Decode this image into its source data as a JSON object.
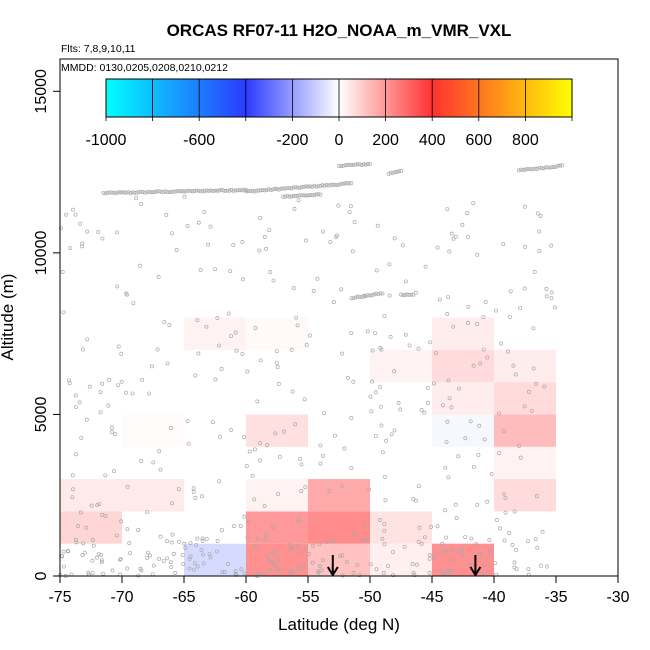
{
  "chart_data": {
    "type": "heatmap",
    "title": "ORCAS RF07-11 H2O_NOAA_m_VMR_VXL",
    "flights_note": "Flts: 7,8,9,10,11",
    "dates_note": "MMDD: 0130,0205,0208,0210,0212",
    "xlabel": "Latitude (deg N)",
    "ylabel": "Altitude (m)",
    "xlim": [
      -75,
      -30
    ],
    "ylim": [
      0,
      16000
    ],
    "x_ticks": [
      -75,
      -70,
      -65,
      -60,
      -55,
      -50,
      -45,
      -40,
      -35,
      -30
    ],
    "x_tick_labels": [
      "-75",
      "-70",
      "-65",
      "-60",
      "-55",
      "-50",
      "-45",
      "-40",
      "-35",
      "-30"
    ],
    "y_ticks": [
      0,
      5000,
      10000,
      15000
    ],
    "y_tick_labels": [
      "0",
      "5000",
      "10000",
      "15000"
    ],
    "colorbar": {
      "range": [
        -1000,
        1000
      ],
      "tick_values": [
        -1000,
        -600,
        -200,
        0,
        200,
        400,
        600,
        800
      ],
      "tick_labels": [
        "-1000",
        "-600",
        "-200",
        "0",
        "200",
        "400",
        "600",
        "800"
      ],
      "colors": {
        "min": "#00ffff",
        "neg_mid": "#2b3bff",
        "zero": "#ffffff",
        "pos_mid": "#ff3030",
        "max": "#ffff00"
      }
    },
    "cells": [
      {
        "lat": [
          -75,
          -70
        ],
        "alt": [
          2000,
          3000
        ],
        "value": 40
      },
      {
        "lat": [
          -70,
          -65
        ],
        "alt": [
          2000,
          3000
        ],
        "value": 40
      },
      {
        "lat": [
          -75,
          -70
        ],
        "alt": [
          1000,
          2000
        ],
        "value": 80
      },
      {
        "lat": [
          -70,
          -65
        ],
        "alt": [
          4000,
          5000
        ],
        "value": 8
      },
      {
        "lat": [
          -65,
          -60
        ],
        "alt": [
          7000,
          8000
        ],
        "value": 25
      },
      {
        "lat": [
          -60,
          -55
        ],
        "alt": [
          7000,
          8000
        ],
        "value": 12
      },
      {
        "lat": [
          -65,
          -60
        ],
        "alt": [
          0,
          1000
        ],
        "value": -75
      },
      {
        "lat": [
          -60,
          -55
        ],
        "alt": [
          0,
          1000
        ],
        "value": 215
      },
      {
        "lat": [
          -60,
          -55
        ],
        "alt": [
          1000,
          2000
        ],
        "value": 200
      },
      {
        "lat": [
          -60,
          -55
        ],
        "alt": [
          2000,
          3000
        ],
        "value": 25
      },
      {
        "lat": [
          -60,
          -55
        ],
        "alt": [
          4000,
          5000
        ],
        "value": 60
      },
      {
        "lat": [
          -55,
          -50
        ],
        "alt": [
          0,
          1000
        ],
        "value": 120
      },
      {
        "lat": [
          -55,
          -50
        ],
        "alt": [
          1000,
          2000
        ],
        "value": 225
      },
      {
        "lat": [
          -55,
          -50
        ],
        "alt": [
          2000,
          3000
        ],
        "value": 165
      },
      {
        "lat": [
          -50,
          -45
        ],
        "alt": [
          0,
          1000
        ],
        "value": 30
      },
      {
        "lat": [
          -50,
          -45
        ],
        "alt": [
          1000,
          2000
        ],
        "value": 55
      },
      {
        "lat": [
          -50,
          -45
        ],
        "alt": [
          6000,
          7000
        ],
        "value": 25
      },
      {
        "lat": [
          -45,
          -40
        ],
        "alt": [
          0,
          1000
        ],
        "value": 215
      },
      {
        "lat": [
          -45,
          -40
        ],
        "alt": [
          4000,
          5000
        ],
        "value": -15
      },
      {
        "lat": [
          -45,
          -40
        ],
        "alt": [
          5000,
          6000
        ],
        "value": 35
      },
      {
        "lat": [
          -45,
          -40
        ],
        "alt": [
          6000,
          7000
        ],
        "value": 70
      },
      {
        "lat": [
          -45,
          -40
        ],
        "alt": [
          7000,
          8000
        ],
        "value": 35
      },
      {
        "lat": [
          -40,
          -35
        ],
        "alt": [
          2000,
          3000
        ],
        "value": 70
      },
      {
        "lat": [
          -40,
          -35
        ],
        "alt": [
          3000,
          4000
        ],
        "value": 25
      },
      {
        "lat": [
          -40,
          -35
        ],
        "alt": [
          4000,
          5000
        ],
        "value": 130
      },
      {
        "lat": [
          -40,
          -35
        ],
        "alt": [
          5000,
          6000
        ],
        "value": 70
      },
      {
        "lat": [
          -40,
          -35
        ],
        "alt": [
          6000,
          7000
        ],
        "value": 35
      }
    ],
    "arrows_lat": [
      -53,
      -41.5
    ],
    "track_segments": [
      {
        "lat": [
          -71.5,
          -60
        ],
        "alt": [
          11850,
          11950
        ]
      },
      {
        "lat": [
          -60,
          -51.5
        ],
        "alt": [
          11900,
          12150
        ]
      },
      {
        "lat": [
          -52.5,
          -50
        ],
        "alt": [
          12700,
          12750
        ]
      },
      {
        "lat": [
          -48.5,
          -47.5
        ],
        "alt": [
          12450,
          12550
        ]
      },
      {
        "lat": [
          -38,
          -34.5
        ],
        "alt": [
          12550,
          12700
        ]
      },
      {
        "lat": [
          -51.5,
          -49
        ],
        "alt": [
          8600,
          8750
        ]
      },
      {
        "lat": [
          -47.5,
          -46.5
        ],
        "alt": [
          8700,
          8700
        ]
      },
      {
        "lat": [
          -57,
          -54
        ],
        "alt": [
          11750,
          11800
        ]
      }
    ],
    "grid": false,
    "point_color": "#a9a9a9"
  }
}
